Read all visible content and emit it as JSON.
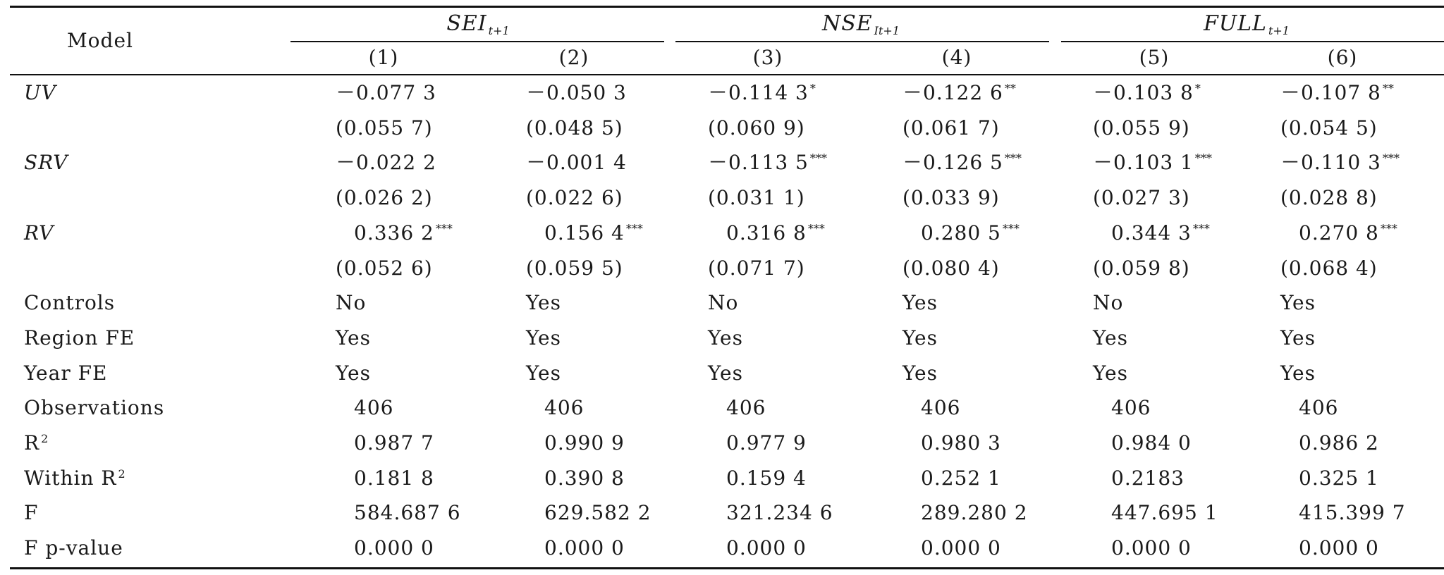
{
  "header": {
    "model_label": "Model",
    "groups": [
      {
        "name": "SEI",
        "sub": "t+1"
      },
      {
        "name": "NSE",
        "sub": "It+1"
      },
      {
        "name": "FULL",
        "sub": "t+1"
      }
    ],
    "columns": [
      "(1)",
      "(2)",
      "(3)",
      "(4)",
      "(5)",
      "(6)"
    ]
  },
  "rows": [
    {
      "label": "UV",
      "italic": true,
      "cells": [
        {
          "v": "－0.077 3",
          "s": ""
        },
        {
          "v": "－0.050 3",
          "s": ""
        },
        {
          "v": "－0.114 3",
          "s": "*"
        },
        {
          "v": "－0.122 6",
          "s": "**"
        },
        {
          "v": "－0.103 8",
          "s": "*"
        },
        {
          "v": "－0.107 8",
          "s": "**"
        }
      ]
    },
    {
      "label": "",
      "italic": false,
      "cells": [
        {
          "v": "(0.055 7)",
          "s": ""
        },
        {
          "v": "(0.048 5)",
          "s": ""
        },
        {
          "v": "(0.060 9)",
          "s": ""
        },
        {
          "v": "(0.061 7)",
          "s": ""
        },
        {
          "v": "(0.055 9)",
          "s": ""
        },
        {
          "v": "(0.054 5)",
          "s": ""
        }
      ]
    },
    {
      "label": "SRV",
      "italic": true,
      "cells": [
        {
          "v": "－0.022 2",
          "s": ""
        },
        {
          "v": "－0.001 4",
          "s": ""
        },
        {
          "v": "－0.113 5",
          "s": "***"
        },
        {
          "v": "－0.126 5",
          "s": "***"
        },
        {
          "v": "－0.103 1",
          "s": "***"
        },
        {
          "v": "－0.110 3",
          "s": "***"
        }
      ]
    },
    {
      "label": "",
      "italic": false,
      "cells": [
        {
          "v": "(0.026 2)",
          "s": ""
        },
        {
          "v": "(0.022 6)",
          "s": ""
        },
        {
          "v": "(0.031 1)",
          "s": ""
        },
        {
          "v": "(0.033 9)",
          "s": ""
        },
        {
          "v": "(0.027 3)",
          "s": ""
        },
        {
          "v": "(0.028 8)",
          "s": ""
        }
      ]
    },
    {
      "label": "RV",
      "italic": true,
      "cells": [
        {
          "v": "0.336 2",
          "s": "***"
        },
        {
          "v": "0.156 4",
          "s": "***"
        },
        {
          "v": "0.316 8",
          "s": "***"
        },
        {
          "v": "0.280 5",
          "s": "***"
        },
        {
          "v": "0.344 3",
          "s": "***"
        },
        {
          "v": "0.270 8",
          "s": "***"
        }
      ]
    },
    {
      "label": "",
      "italic": false,
      "cells": [
        {
          "v": "(0.052 6)",
          "s": ""
        },
        {
          "v": "(0.059 5)",
          "s": ""
        },
        {
          "v": "(0.071 7)",
          "s": ""
        },
        {
          "v": "(0.080 4)",
          "s": ""
        },
        {
          "v": "(0.059 8)",
          "s": ""
        },
        {
          "v": "(0.068 4)",
          "s": ""
        }
      ]
    },
    {
      "label": "Controls",
      "italic": false,
      "cells": [
        {
          "v": "No",
          "s": ""
        },
        {
          "v": "Yes",
          "s": ""
        },
        {
          "v": "No",
          "s": ""
        },
        {
          "v": "Yes",
          "s": ""
        },
        {
          "v": "No",
          "s": ""
        },
        {
          "v": "Yes",
          "s": ""
        }
      ]
    },
    {
      "label": "Region FE",
      "italic": false,
      "cells": [
        {
          "v": "Yes",
          "s": ""
        },
        {
          "v": "Yes",
          "s": ""
        },
        {
          "v": "Yes",
          "s": ""
        },
        {
          "v": "Yes",
          "s": ""
        },
        {
          "v": "Yes",
          "s": ""
        },
        {
          "v": "Yes",
          "s": ""
        }
      ]
    },
    {
      "label": "Year FE",
      "italic": false,
      "cells": [
        {
          "v": "Yes",
          "s": ""
        },
        {
          "v": "Yes",
          "s": ""
        },
        {
          "v": "Yes",
          "s": ""
        },
        {
          "v": "Yes",
          "s": ""
        },
        {
          "v": "Yes",
          "s": ""
        },
        {
          "v": "Yes",
          "s": ""
        }
      ]
    },
    {
      "label": "Observations",
      "italic": false,
      "cells": [
        {
          "v": "406",
          "s": ""
        },
        {
          "v": "406",
          "s": ""
        },
        {
          "v": "406",
          "s": ""
        },
        {
          "v": "406",
          "s": ""
        },
        {
          "v": "406",
          "s": ""
        },
        {
          "v": "406",
          "s": ""
        }
      ]
    },
    {
      "label": "R",
      "label_sup": "2",
      "italic": false,
      "cells": [
        {
          "v": "0.987 7",
          "s": ""
        },
        {
          "v": "0.990 9",
          "s": ""
        },
        {
          "v": "0.977 9",
          "s": ""
        },
        {
          "v": "0.980 3",
          "s": ""
        },
        {
          "v": "0.984 0",
          "s": ""
        },
        {
          "v": "0.986 2",
          "s": ""
        }
      ]
    },
    {
      "label": "Within R",
      "label_sup": "2",
      "italic": false,
      "cells": [
        {
          "v": "0.181 8",
          "s": ""
        },
        {
          "v": "0.390 8",
          "s": ""
        },
        {
          "v": "0.159 4",
          "s": ""
        },
        {
          "v": "0.252 1",
          "s": ""
        },
        {
          "v": "0.2183",
          "s": ""
        },
        {
          "v": "0.325 1",
          "s": ""
        }
      ]
    },
    {
      "label": "F",
      "italic": false,
      "cells": [
        {
          "v": "584.687 6",
          "s": ""
        },
        {
          "v": "629.582 2",
          "s": ""
        },
        {
          "v": "321.234 6",
          "s": ""
        },
        {
          "v": "289.280 2",
          "s": ""
        },
        {
          "v": "447.695 1",
          "s": ""
        },
        {
          "v": "415.399 7",
          "s": ""
        }
      ]
    },
    {
      "label": "F p-value",
      "italic": false,
      "cells": [
        {
          "v": "0.000 0",
          "s": ""
        },
        {
          "v": "0.000 0",
          "s": ""
        },
        {
          "v": "0.000 0",
          "s": ""
        },
        {
          "v": "0.000 0",
          "s": ""
        },
        {
          "v": "0.000 0",
          "s": ""
        },
        {
          "v": "0.000 0",
          "s": ""
        }
      ]
    }
  ]
}
